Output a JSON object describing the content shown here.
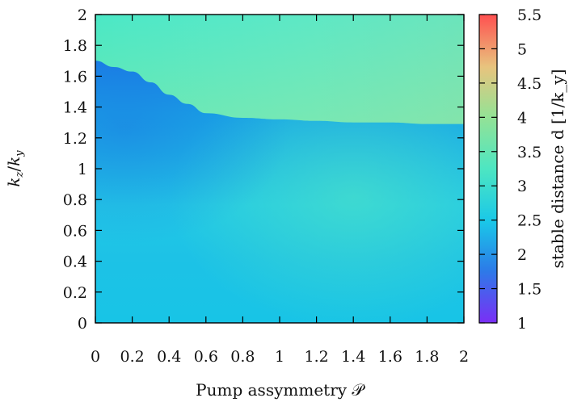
{
  "chart_data": {
    "type": "heatmap",
    "title": "",
    "xlabel": "Pump assymmetry 𝒫",
    "ylabel": "k_z / k_y",
    "colorbar_label": "stable distance d [1/k_y]",
    "xlim": [
      0,
      2
    ],
    "ylim": [
      0,
      2
    ],
    "clim": [
      1,
      5.5
    ],
    "x_ticks": [
      0,
      0.2,
      0.4,
      0.6,
      0.8,
      1,
      1.2,
      1.4,
      1.6,
      1.8,
      2
    ],
    "x_tick_labels": [
      "0",
      "0.2",
      "0.4",
      "0.6",
      "0.8",
      "1",
      "1.2",
      "1.4",
      "1.6",
      "1.8",
      "2"
    ],
    "y_ticks": [
      0,
      0.2,
      0.4,
      0.6,
      0.8,
      1,
      1.2,
      1.4,
      1.6,
      1.8,
      2
    ],
    "y_tick_labels": [
      "0",
      "0.2",
      "0.4",
      "0.6",
      "0.8",
      "1",
      "1.2",
      "1.4",
      "1.6",
      "1.8",
      "2"
    ],
    "colorbar_ticks": [
      1,
      1.5,
      2,
      2.5,
      3,
      3.5,
      4,
      4.5,
      5,
      5.5
    ],
    "colorbar_tick_labels": [
      "1",
      "1.5",
      "2",
      "2.5",
      "3",
      "3.5",
      "4",
      "4.5",
      "5",
      "5.5"
    ],
    "colormap": [
      "#7a2ff5",
      "#2c7be8",
      "#1ac8e8",
      "#4de6c2",
      "#95e295",
      "#e8c47e",
      "#ff5050"
    ],
    "boundary": {
      "description": "upper edge of the low-distance (blue) region",
      "x": [
        0.0,
        0.1,
        0.2,
        0.3,
        0.4,
        0.5,
        0.6,
        0.8,
        1.0,
        1.2,
        1.4,
        1.6,
        1.8,
        2.0
      ],
      "y": [
        1.7,
        1.66,
        1.63,
        1.56,
        1.48,
        1.42,
        1.36,
        1.33,
        1.32,
        1.31,
        1.3,
        1.3,
        1.29,
        1.29
      ]
    },
    "regions": [
      {
        "name": "above boundary",
        "value_range": [
          3.0,
          4.3
        ]
      },
      {
        "name": "below boundary",
        "value_range": [
          2.1,
          2.7
        ]
      }
    ]
  }
}
